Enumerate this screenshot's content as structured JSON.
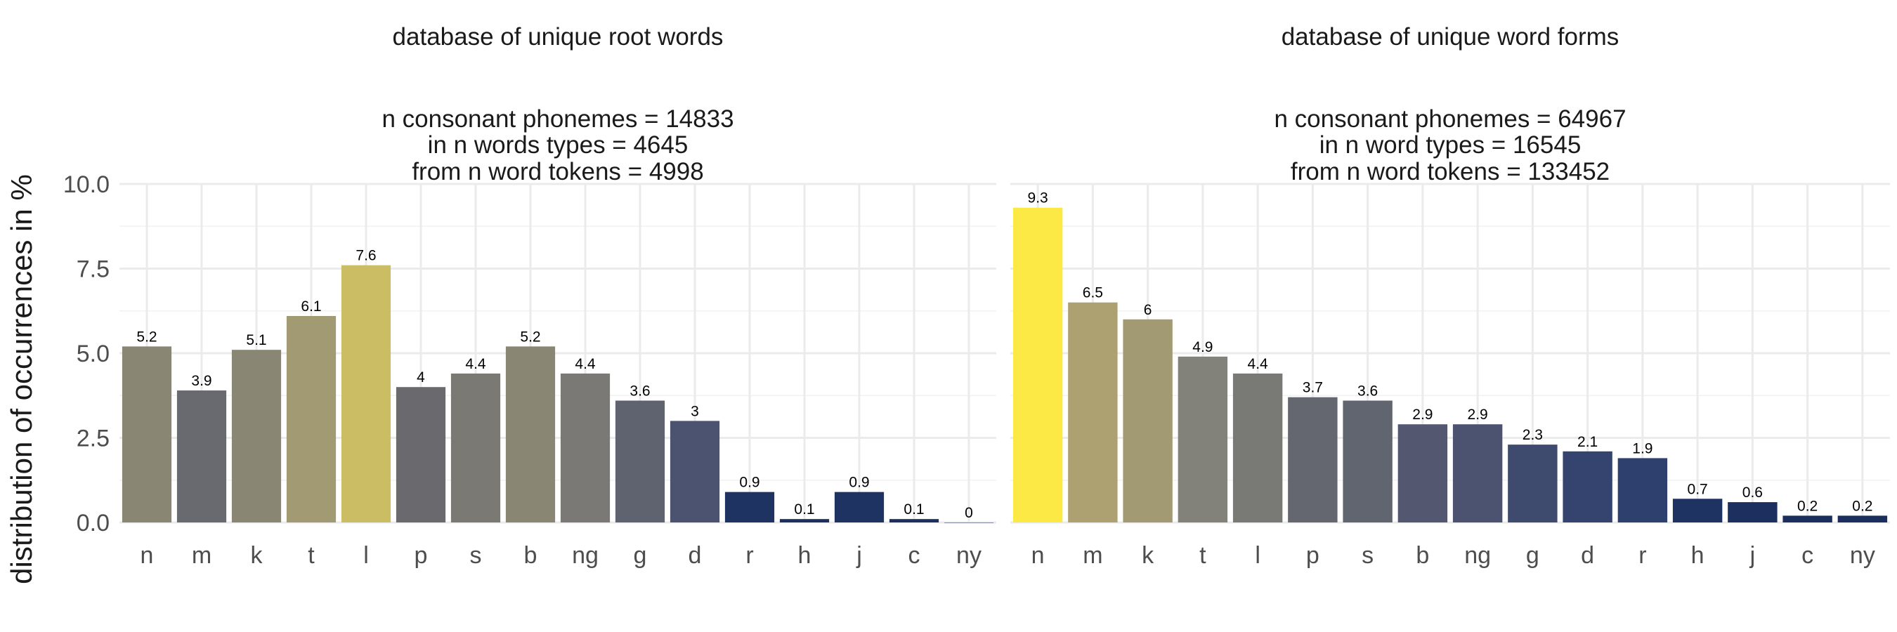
{
  "ylabel": "distribution of occurrences in %",
  "chart_data": [
    {
      "type": "bar",
      "title_lines": [
        "database of unique root words",
        "",
        "n consonant phonemes = 14833",
        "in n words types = 4645",
        "from n word tokens = 4998"
      ],
      "ylabel": "distribution of occurrences in %",
      "ylim": [
        0,
        10
      ],
      "yticks": [
        "0.0",
        "2.5",
        "5.0",
        "7.5",
        "10.0"
      ],
      "grid": true,
      "categories": [
        "n",
        "m",
        "k",
        "t",
        "l",
        "p",
        "s",
        "b",
        "ng",
        "g",
        "d",
        "r",
        "h",
        "j",
        "c",
        "ny"
      ],
      "values": [
        5.2,
        3.9,
        5.1,
        6.1,
        7.6,
        4,
        4.4,
        5.2,
        4.4,
        3.6,
        3,
        0.9,
        0.1,
        0.9,
        0.1,
        0
      ],
      "labels": [
        "5.2",
        "3.9",
        "5.1",
        "6.1",
        "7.6",
        "4",
        "4.4",
        "5.2",
        "4.4",
        "3.6",
        "3",
        "0.9",
        "0.1",
        "0.9",
        "0.1",
        "0"
      ],
      "colors": [
        "#8a8674",
        "#696a6f",
        "#8a8674",
        "#a29a73",
        "#cbbd63",
        "#6a6a6e",
        "#7a7974",
        "#8a8674",
        "#7a7975",
        "#5f6370",
        "#4c5370",
        "#1f3363",
        "#1c2f5f",
        "#1f3363",
        "#1c2f5f",
        "#1b2e5d"
      ]
    },
    {
      "type": "bar",
      "title_lines": [
        "database of unique word forms",
        "",
        "n consonant phonemes = 64967",
        "in n word types = 16545",
        "from n word tokens = 133452"
      ],
      "ylim": [
        0,
        10
      ],
      "grid": true,
      "categories": [
        "n",
        "m",
        "k",
        "t",
        "l",
        "p",
        "s",
        "b",
        "ng",
        "g",
        "d",
        "r",
        "h",
        "j",
        "c",
        "ny"
      ],
      "values": [
        9.3,
        6.5,
        6,
        4.9,
        4.4,
        3.7,
        3.6,
        2.9,
        2.9,
        2.3,
        2.1,
        1.9,
        0.7,
        0.6,
        0.2,
        0.2
      ],
      "labels": [
        "9.3",
        "6.5",
        "6",
        "4.9",
        "4.4",
        "3.7",
        "3.6",
        "2.9",
        "2.9",
        "2.3",
        "2.1",
        "1.9",
        "0.7",
        "0.6",
        "0.2",
        "0.2"
      ],
      "colors": [
        "#fde945",
        "#ada071",
        "#a29a73",
        "#82817a",
        "#797975",
        "#646670",
        "#616570",
        "#535870",
        "#4c5370",
        "#3e4a6e",
        "#34446e",
        "#2e406d",
        "#1f3363",
        "#1c2f5f",
        "#1b2e5d",
        "#1b2e5d"
      ]
    }
  ]
}
